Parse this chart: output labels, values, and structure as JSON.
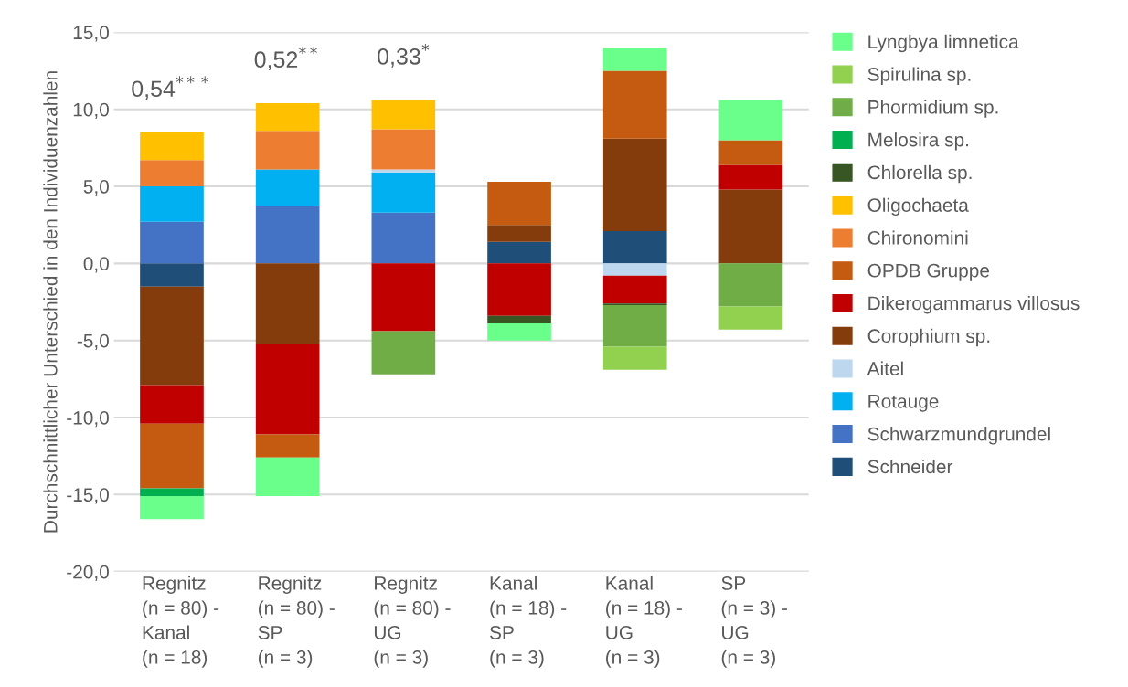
{
  "chart_data": {
    "type": "bar",
    "stacked": true,
    "ylabel": "Durchschnittlicher Unterschied in den Individuenzahlen",
    "categories": [
      "Regnitz\n(n = 80) -\nKanal\n(n = 18)",
      "Regnitz\n(n = 80) -\nSP\n(n = 3)",
      "Regnitz\n(n = 80) -\nUG\n(n = 3)",
      "Kanal\n(n = 18) -\nSP\n(n = 3)",
      "Kanal\n(n = 18) -\nUG\n(n = 3)",
      "SP\n(n = 3) -\nUG\n(n = 3)"
    ],
    "series": [
      {
        "name": "Schneider",
        "color": "#1f4e79",
        "values": [
          -1.5,
          null,
          null,
          1.4,
          2.1,
          null
        ]
      },
      {
        "name": "Schwarzmundgrundel",
        "color": "#4472c4",
        "values": [
          2.7,
          3.7,
          3.3,
          null,
          null,
          null
        ]
      },
      {
        "name": "Rotauge",
        "color": "#00b0f0",
        "values": [
          2.3,
          2.4,
          2.6,
          null,
          null,
          null
        ]
      },
      {
        "name": "Aitel",
        "color": "#bdd7ee",
        "values": [
          null,
          null,
          0.2,
          null,
          -0.8,
          null
        ]
      },
      {
        "name": "Corophium sp.",
        "color": "#843c0c",
        "values": [
          -6.4,
          -5.2,
          null,
          1.1,
          6.0,
          4.8
        ]
      },
      {
        "name": "Dikerogammarus villosus",
        "color": "#c00000",
        "values": [
          -2.5,
          -5.9,
          -4.4,
          -3.4,
          -1.8,
          1.6
        ]
      },
      {
        "name": "OPDB Gruppe",
        "color": "#c55a11",
        "values": [
          -4.2,
          -1.5,
          null,
          2.8,
          4.4,
          1.6
        ]
      },
      {
        "name": "Chironomini",
        "color": "#ed7d31",
        "values": [
          1.7,
          2.5,
          2.6,
          null,
          null,
          null
        ]
      },
      {
        "name": "Oligochaeta",
        "color": "#ffc000",
        "values": [
          1.8,
          1.8,
          1.9,
          null,
          null,
          null
        ]
      },
      {
        "name": "Chlorella sp.",
        "color": "#375623",
        "values": [
          null,
          null,
          null,
          -0.5,
          -0.1,
          null
        ]
      },
      {
        "name": "Melosira sp.",
        "color": "#00b050",
        "values": [
          -0.5,
          null,
          null,
          null,
          null,
          null
        ]
      },
      {
        "name": "Phormidium sp.",
        "color": "#70ad47",
        "values": [
          null,
          null,
          -2.8,
          null,
          -2.7,
          -2.8
        ]
      },
      {
        "name": "Spirulina sp.",
        "color": "#92d050",
        "values": [
          null,
          null,
          null,
          null,
          -1.5,
          -1.5
        ]
      },
      {
        "name": "Lyngbya limnetica",
        "color": "#69ff8a",
        "values": [
          -1.5,
          -2.5,
          null,
          -1.1,
          1.5,
          2.6
        ]
      }
    ],
    "annotations": [
      "0,54$^{***}$",
      "0,52$^{**}$",
      "0,33$^{*}$"
    ],
    "ylim": [
      -20,
      15
    ],
    "yticks": [
      {
        "value": -20,
        "label": "-20,0"
      },
      {
        "value": -15,
        "label": "-15,0"
      },
      {
        "value": -10,
        "label": "-10,0"
      },
      {
        "value": -5,
        "label": "-5,0"
      },
      {
        "value": 0,
        "label": "0,0"
      },
      {
        "value": 5,
        "label": "5,0"
      },
      {
        "value": 10,
        "label": "10,0"
      },
      {
        "value": 15,
        "label": "15,0"
      }
    ],
    "grid": "y",
    "legend": "right"
  }
}
